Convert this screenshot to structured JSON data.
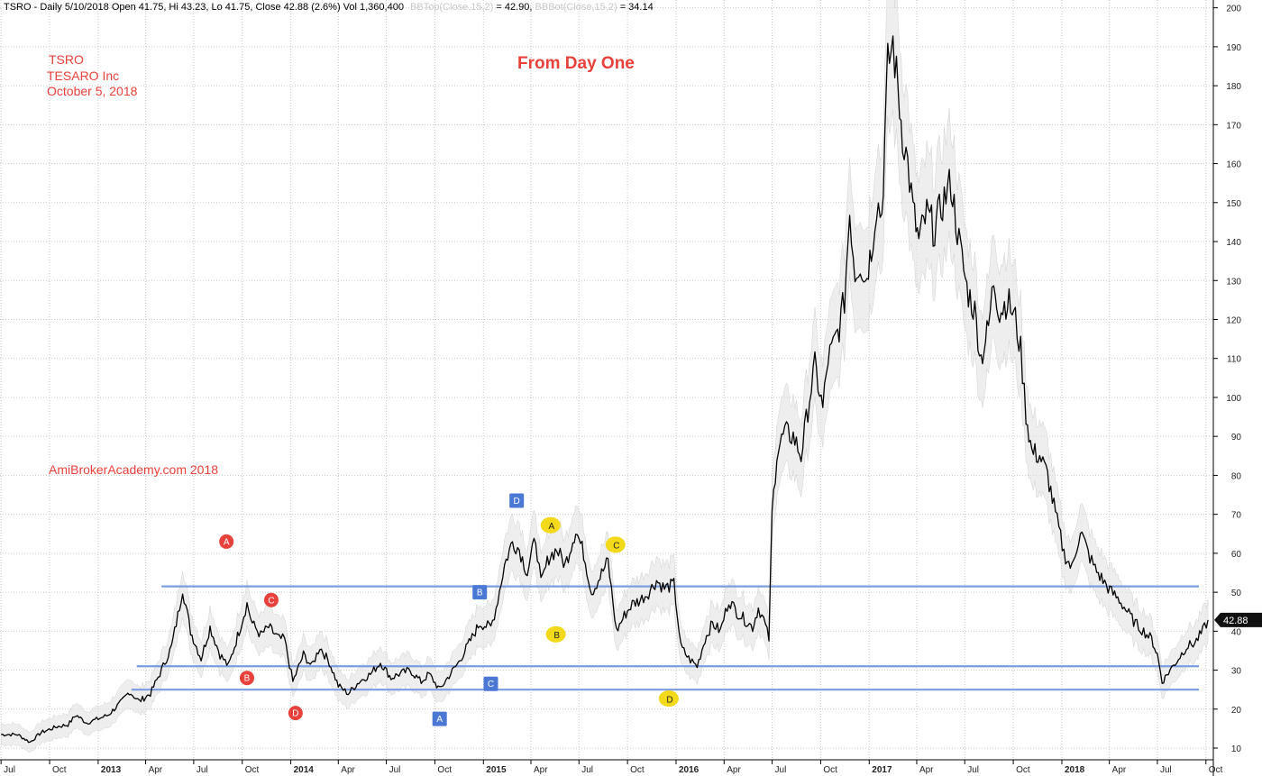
{
  "header": {
    "main": "TSRO - Daily 5/10/2018 Open 41.75, Hi 43.23, Lo 41.75, Close 42.88 (2.6%) Vol 1,360,400",
    "bbtop_label": "BBTop(Close,15,2)",
    "bbtop_value": " = 42.90, ",
    "bbbot_label": "BBBot(Close,15,2)",
    "bbbot_value": " = 34.14"
  },
  "notes": {
    "ticker": "TSRO",
    "company": "TESARO Inc",
    "date": "October 5, 2018",
    "headline": "From Day One",
    "watermark": "AmiBrokerAcademy.com  2018"
  },
  "colors": {
    "price": "#000000",
    "band": "#e0e0e0",
    "level_line": "#7a9de0",
    "grid": "#c9c9c9",
    "red_marker": "#e8403a",
    "blue_marker": "#4a78d4",
    "yellow_marker": "#f2d91a",
    "text_red": "#e8403a"
  },
  "chart_data": {
    "type": "line",
    "title": "",
    "ylim": [
      7,
      202
    ],
    "yticks": [
      10,
      20,
      30,
      40,
      50,
      60,
      70,
      80,
      90,
      100,
      110,
      120,
      130,
      140,
      150,
      160,
      170,
      180,
      190,
      200
    ],
    "x_range": [
      "2012-06-29",
      "2018-10-15"
    ],
    "xticks": [
      {
        "label": "Jul",
        "date": "2012-07-01",
        "bold": false
      },
      {
        "label": "Oct",
        "date": "2012-10-01",
        "bold": false
      },
      {
        "label": "2013",
        "date": "2013-01-01",
        "bold": true
      },
      {
        "label": "Apr",
        "date": "2013-04-01",
        "bold": false
      },
      {
        "label": "Jul",
        "date": "2013-07-01",
        "bold": false
      },
      {
        "label": "Oct",
        "date": "2013-10-01",
        "bold": false
      },
      {
        "label": "2014",
        "date": "2014-01-01",
        "bold": true
      },
      {
        "label": "Apr",
        "date": "2014-04-01",
        "bold": false
      },
      {
        "label": "Jul",
        "date": "2014-07-01",
        "bold": false
      },
      {
        "label": "Oct",
        "date": "2014-10-01",
        "bold": false
      },
      {
        "label": "2015",
        "date": "2015-01-01",
        "bold": true
      },
      {
        "label": "Apr",
        "date": "2015-04-01",
        "bold": false
      },
      {
        "label": "Jul",
        "date": "2015-07-01",
        "bold": false
      },
      {
        "label": "Oct",
        "date": "2015-10-01",
        "bold": false
      },
      {
        "label": "2016",
        "date": "2016-01-01",
        "bold": true
      },
      {
        "label": "Apr",
        "date": "2016-04-01",
        "bold": false
      },
      {
        "label": "Jul",
        "date": "2016-07-01",
        "bold": false
      },
      {
        "label": "Oct",
        "date": "2016-10-01",
        "bold": false
      },
      {
        "label": "2017",
        "date": "2017-01-01",
        "bold": true
      },
      {
        "label": "Apr",
        "date": "2017-04-01",
        "bold": false
      },
      {
        "label": "Jul",
        "date": "2017-07-01",
        "bold": false
      },
      {
        "label": "Oct",
        "date": "2017-10-01",
        "bold": false
      },
      {
        "label": "2018",
        "date": "2018-01-01",
        "bold": true
      },
      {
        "label": "Apr",
        "date": "2018-04-01",
        "bold": false
      },
      {
        "label": "Jul",
        "date": "2018-07-01",
        "bold": false
      },
      {
        "label": "Oct",
        "date": "2018-10-01",
        "bold": false
      }
    ],
    "price_label": "42.88",
    "last_close": 42.88,
    "series": [
      {
        "name": "TSRO",
        "points": [
          [
            "2012-07-01",
            13.5
          ],
          [
            "2012-08-01",
            13.5
          ],
          [
            "2012-08-25",
            11.5
          ],
          [
            "2012-09-15",
            14
          ],
          [
            "2012-10-15",
            15.5
          ],
          [
            "2012-11-05",
            16
          ],
          [
            "2012-11-20",
            18.5
          ],
          [
            "2012-12-10",
            16.5
          ],
          [
            "2013-01-01",
            17.5
          ],
          [
            "2013-01-20",
            18.5
          ],
          [
            "2013-02-15",
            22
          ],
          [
            "2013-03-01",
            24.5
          ],
          [
            "2013-03-20",
            22
          ],
          [
            "2013-04-10",
            24
          ],
          [
            "2013-05-01",
            30
          ],
          [
            "2013-05-20",
            36
          ],
          [
            "2013-06-01",
            44
          ],
          [
            "2013-06-10",
            51
          ],
          [
            "2013-06-25",
            40
          ],
          [
            "2013-07-15",
            33
          ],
          [
            "2013-08-01",
            41
          ],
          [
            "2013-08-20",
            34
          ],
          [
            "2013-09-05",
            31
          ],
          [
            "2013-09-25",
            40
          ],
          [
            "2013-10-10",
            47
          ],
          [
            "2013-10-20",
            42
          ],
          [
            "2013-11-05",
            39
          ],
          [
            "2013-11-20",
            41
          ],
          [
            "2013-12-10",
            38
          ],
          [
            "2013-12-20",
            38
          ],
          [
            "2014-01-05",
            27
          ],
          [
            "2014-01-25",
            34
          ],
          [
            "2014-02-10",
            31
          ],
          [
            "2014-02-25",
            36
          ],
          [
            "2014-03-15",
            32
          ],
          [
            "2014-04-01",
            26
          ],
          [
            "2014-04-20",
            24
          ],
          [
            "2014-05-10",
            27
          ],
          [
            "2014-06-01",
            29
          ],
          [
            "2014-06-20",
            32
          ],
          [
            "2014-07-10",
            28
          ],
          [
            "2014-07-25",
            29
          ],
          [
            "2014-08-15",
            30
          ],
          [
            "2014-09-05",
            27
          ],
          [
            "2014-09-20",
            29
          ],
          [
            "2014-10-10",
            25
          ],
          [
            "2014-10-25",
            28
          ],
          [
            "2014-11-15",
            32
          ],
          [
            "2014-12-05",
            37
          ],
          [
            "2014-12-25",
            42
          ],
          [
            "2015-01-15",
            41
          ],
          [
            "2015-01-25",
            46
          ],
          [
            "2015-02-10",
            57
          ],
          [
            "2015-02-25",
            63
          ],
          [
            "2015-03-10",
            61
          ],
          [
            "2015-03-25",
            55
          ],
          [
            "2015-04-10",
            64
          ],
          [
            "2015-04-20",
            52
          ],
          [
            "2015-05-05",
            59
          ],
          [
            "2015-05-20",
            61
          ],
          [
            "2015-06-05",
            57
          ],
          [
            "2015-06-25",
            66
          ],
          [
            "2015-07-10",
            60
          ],
          [
            "2015-07-25",
            50
          ],
          [
            "2015-08-10",
            54
          ],
          [
            "2015-08-25",
            58
          ],
          [
            "2015-09-10",
            40
          ],
          [
            "2015-09-25",
            44
          ],
          [
            "2015-10-10",
            47
          ],
          [
            "2015-10-25",
            48
          ],
          [
            "2015-11-10",
            50
          ],
          [
            "2015-11-25",
            53
          ],
          [
            "2015-12-10",
            51
          ],
          [
            "2015-12-28",
            52
          ],
          [
            "2016-01-10",
            36
          ],
          [
            "2016-01-25",
            33
          ],
          [
            "2016-02-10",
            31
          ],
          [
            "2016-02-25",
            38
          ],
          [
            "2016-03-10",
            42
          ],
          [
            "2016-03-25",
            40
          ],
          [
            "2016-04-10",
            48
          ],
          [
            "2016-04-25",
            45
          ],
          [
            "2016-05-10",
            43
          ],
          [
            "2016-05-25",
            41
          ],
          [
            "2016-06-05",
            46
          ],
          [
            "2016-06-15",
            43
          ],
          [
            "2016-06-25",
            38
          ],
          [
            "2016-07-01",
            70
          ],
          [
            "2016-07-10",
            86
          ],
          [
            "2016-07-25",
            91
          ],
          [
            "2016-08-10",
            90
          ],
          [
            "2016-08-25",
            85
          ],
          [
            "2016-09-10",
            100
          ],
          [
            "2016-09-20",
            108
          ],
          [
            "2016-10-05",
            97
          ],
          [
            "2016-10-15",
            110
          ],
          [
            "2016-10-25",
            113
          ],
          [
            "2016-11-05",
            118
          ],
          [
            "2016-11-15",
            125
          ],
          [
            "2016-11-25",
            148
          ],
          [
            "2016-12-05",
            132
          ],
          [
            "2016-12-15",
            135
          ],
          [
            "2016-12-25",
            130
          ],
          [
            "2017-01-05",
            138
          ],
          [
            "2017-01-15",
            150
          ],
          [
            "2017-01-25",
            147
          ],
          [
            "2017-02-05",
            185
          ],
          [
            "2017-02-15",
            191
          ],
          [
            "2017-02-25",
            178
          ],
          [
            "2017-03-05",
            168
          ],
          [
            "2017-03-15",
            160
          ],
          [
            "2017-03-25",
            148
          ],
          [
            "2017-04-05",
            140
          ],
          [
            "2017-04-20",
            147
          ],
          [
            "2017-05-05",
            143
          ],
          [
            "2017-05-20",
            150
          ],
          [
            "2017-06-05",
            155
          ],
          [
            "2017-06-20",
            140
          ],
          [
            "2017-07-05",
            128
          ],
          [
            "2017-07-20",
            122
          ],
          [
            "2017-08-01",
            110
          ],
          [
            "2017-08-15",
            118
          ],
          [
            "2017-08-25",
            130
          ],
          [
            "2017-09-05",
            122
          ],
          [
            "2017-09-20",
            125
          ],
          [
            "2017-10-05",
            120
          ],
          [
            "2017-10-15",
            112
          ],
          [
            "2017-10-25",
            96
          ],
          [
            "2017-11-05",
            86
          ],
          [
            "2017-11-20",
            85
          ],
          [
            "2017-12-05",
            80
          ],
          [
            "2017-12-20",
            70
          ],
          [
            "2018-01-05",
            60
          ],
          [
            "2018-01-20",
            56
          ],
          [
            "2018-02-05",
            66
          ],
          [
            "2018-02-20",
            60
          ],
          [
            "2018-03-05",
            56
          ],
          [
            "2018-03-20",
            53
          ],
          [
            "2018-04-05",
            50
          ],
          [
            "2018-04-20",
            48
          ],
          [
            "2018-05-05",
            45
          ],
          [
            "2018-05-20",
            42
          ],
          [
            "2018-06-05",
            40
          ],
          [
            "2018-06-20",
            38
          ],
          [
            "2018-07-01",
            34
          ],
          [
            "2018-07-10",
            27
          ],
          [
            "2018-07-25",
            30
          ],
          [
            "2018-08-10",
            33
          ],
          [
            "2018-08-25",
            36
          ],
          [
            "2018-09-10",
            37
          ],
          [
            "2018-09-25",
            40
          ],
          [
            "2018-10-05",
            42.88
          ]
        ]
      }
    ],
    "levels": [
      {
        "value": 51.5,
        "from": "2013-05-01",
        "to": "2018-10-15"
      },
      {
        "value": 31,
        "from": "2013-03-15",
        "to": "2018-10-15"
      },
      {
        "value": 25,
        "from": "2013-03-05",
        "to": "2018-10-15"
      }
    ],
    "markers": [
      {
        "label": "A",
        "shape": "circle",
        "color": "red",
        "date": "2013-09-01",
        "price": 63
      },
      {
        "label": "B",
        "shape": "circle",
        "color": "red",
        "date": "2013-10-10",
        "price": 28
      },
      {
        "label": "C",
        "shape": "circle",
        "color": "red",
        "date": "2013-11-25",
        "price": 48
      },
      {
        "label": "D",
        "shape": "circle",
        "color": "red",
        "date": "2014-01-10",
        "price": 19
      },
      {
        "label": "A",
        "shape": "square",
        "color": "blue",
        "date": "2014-10-10",
        "price": 17.5
      },
      {
        "label": "B",
        "shape": "square",
        "color": "blue",
        "date": "2014-12-25",
        "price": 50
      },
      {
        "label": "C",
        "shape": "square",
        "color": "blue",
        "date": "2015-01-15",
        "price": 26.5
      },
      {
        "label": "D",
        "shape": "square",
        "color": "blue",
        "date": "2015-03-05",
        "price": 73.5
      },
      {
        "label": "A",
        "shape": "bubble",
        "color": "yellow",
        "date": "2015-05-10",
        "price": 67
      },
      {
        "label": "B",
        "shape": "bubble",
        "color": "yellow",
        "date": "2015-05-20",
        "price": 39
      },
      {
        "label": "C",
        "shape": "bubble",
        "color": "yellow",
        "date": "2015-09-10",
        "price": 62
      },
      {
        "label": "D",
        "shape": "bubble",
        "color": "yellow",
        "date": "2015-12-20",
        "price": 22.5
      }
    ]
  }
}
